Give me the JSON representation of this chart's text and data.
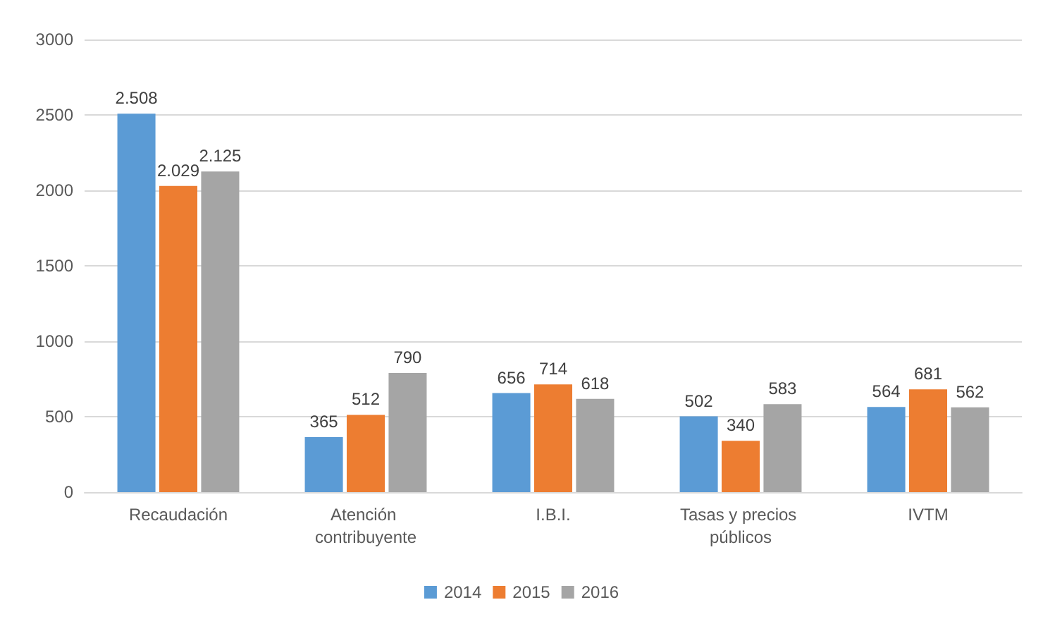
{
  "chart_data": {
    "type": "bar",
    "categories": [
      "Recaudación",
      "Atención contribuyente",
      "I.B.I.",
      "Tasas y precios públicos",
      "IVTM"
    ],
    "series": [
      {
        "name": "2014",
        "color": "#5b9bd5",
        "values": [
          2508,
          365,
          656,
          502,
          564
        ],
        "value_labels": [
          "2.508",
          "365",
          "656",
          "502",
          "564"
        ]
      },
      {
        "name": "2015",
        "color": "#ed7d31",
        "values": [
          2029,
          512,
          714,
          340,
          681
        ],
        "value_labels": [
          "2.029",
          "512",
          "714",
          "340",
          "681"
        ]
      },
      {
        "name": "2016",
        "color": "#a5a5a5",
        "values": [
          2125,
          790,
          618,
          583,
          562
        ],
        "value_labels": [
          "2.125",
          "790",
          "618",
          "583",
          "562"
        ]
      }
    ],
    "ylim": [
      0,
      3000
    ],
    "yticks": [
      0,
      500,
      1000,
      1500,
      2000,
      2500,
      3000
    ],
    "grid": "y",
    "legend": "bottom"
  }
}
